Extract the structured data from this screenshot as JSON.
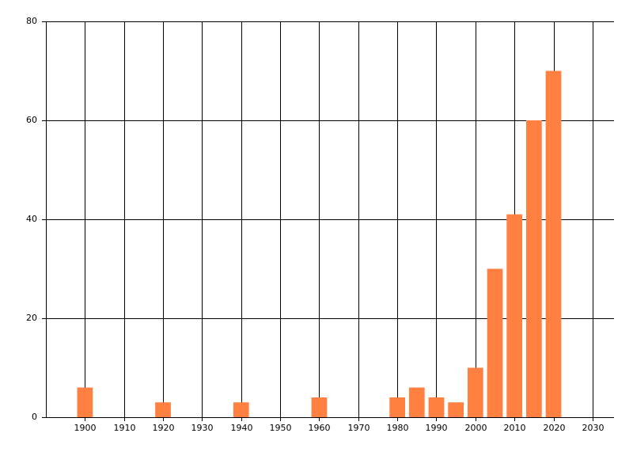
{
  "chart_data": {
    "type": "bar",
    "x": [
      1900,
      1920,
      1940,
      1960,
      1980,
      1985,
      1990,
      1995,
      2000,
      2005,
      2010,
      2015,
      2020
    ],
    "values": [
      6,
      3,
      3,
      4,
      4,
      6,
      4,
      3,
      10,
      30,
      41,
      60,
      70
    ],
    "color": "#ff8040",
    "xlim": [
      1890,
      2035.5
    ],
    "xticks": [
      1900,
      1910,
      1920,
      1930,
      1940,
      1950,
      1960,
      1970,
      1980,
      1990,
      2000,
      2010,
      2020,
      2030
    ],
    "ylim": [
      0,
      80
    ],
    "yticks": [
      0,
      20,
      40,
      60,
      80
    ],
    "grid": true
  }
}
